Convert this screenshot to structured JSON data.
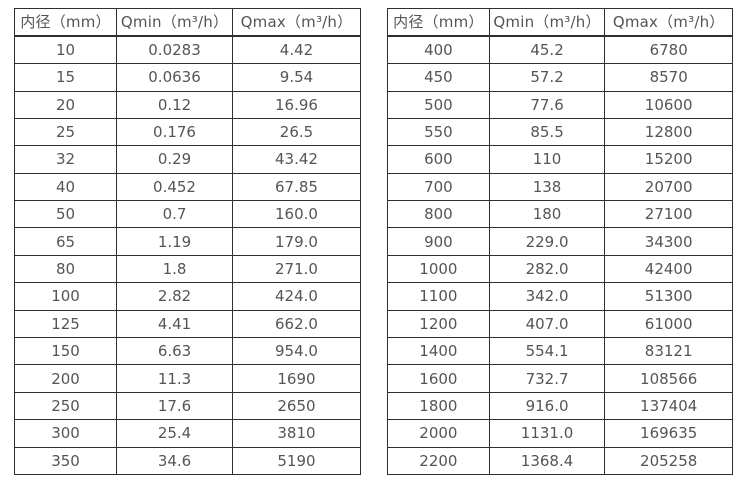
{
  "colors": {
    "background": "#ffffff",
    "border": "#2e2e2e",
    "text": "#555555"
  },
  "chart_data": [
    {
      "type": "table",
      "columns": [
        "内径（mm）",
        "Qmin（m³/h）",
        "Qmax（m³/h）"
      ],
      "rows": [
        [
          "10",
          "0.0283",
          "4.42"
        ],
        [
          "15",
          "0.0636",
          "9.54"
        ],
        [
          "20",
          "0.12",
          "16.96"
        ],
        [
          "25",
          "0.176",
          "26.5"
        ],
        [
          "32",
          "0.29",
          "43.42"
        ],
        [
          "40",
          "0.452",
          "67.85"
        ],
        [
          "50",
          "0.7",
          "160.0"
        ],
        [
          "65",
          "1.19",
          "179.0"
        ],
        [
          "80",
          "1.8",
          "271.0"
        ],
        [
          "100",
          "2.82",
          "424.0"
        ],
        [
          "125",
          "4.41",
          "662.0"
        ],
        [
          "150",
          "6.63",
          "954.0"
        ],
        [
          "200",
          "11.3",
          "1690"
        ],
        [
          "250",
          "17.6",
          "2650"
        ],
        [
          "300",
          "25.4",
          "3810"
        ],
        [
          "350",
          "34.6",
          "5190"
        ]
      ]
    },
    {
      "type": "table",
      "columns": [
        "内径（mm）",
        "Qmin（m³/h）",
        "Qmax（m³/h）"
      ],
      "rows": [
        [
          "400",
          "45.2",
          "6780"
        ],
        [
          "450",
          "57.2",
          "8570"
        ],
        [
          "500",
          "77.6",
          "10600"
        ],
        [
          "550",
          "85.5",
          "12800"
        ],
        [
          "600",
          "110",
          "15200"
        ],
        [
          "700",
          "138",
          "20700"
        ],
        [
          "800",
          "180",
          "27100"
        ],
        [
          "900",
          "229.0",
          "34300"
        ],
        [
          "1000",
          "282.0",
          "42400"
        ],
        [
          "1100",
          "342.0",
          "51300"
        ],
        [
          "1200",
          "407.0",
          "61000"
        ],
        [
          "1400",
          "554.1",
          "83121"
        ],
        [
          "1600",
          "732.7",
          "108566"
        ],
        [
          "1800",
          "916.0",
          "137404"
        ],
        [
          "2000",
          "1131.0",
          "169635"
        ],
        [
          "2200",
          "1368.4",
          "205258"
        ]
      ]
    }
  ]
}
